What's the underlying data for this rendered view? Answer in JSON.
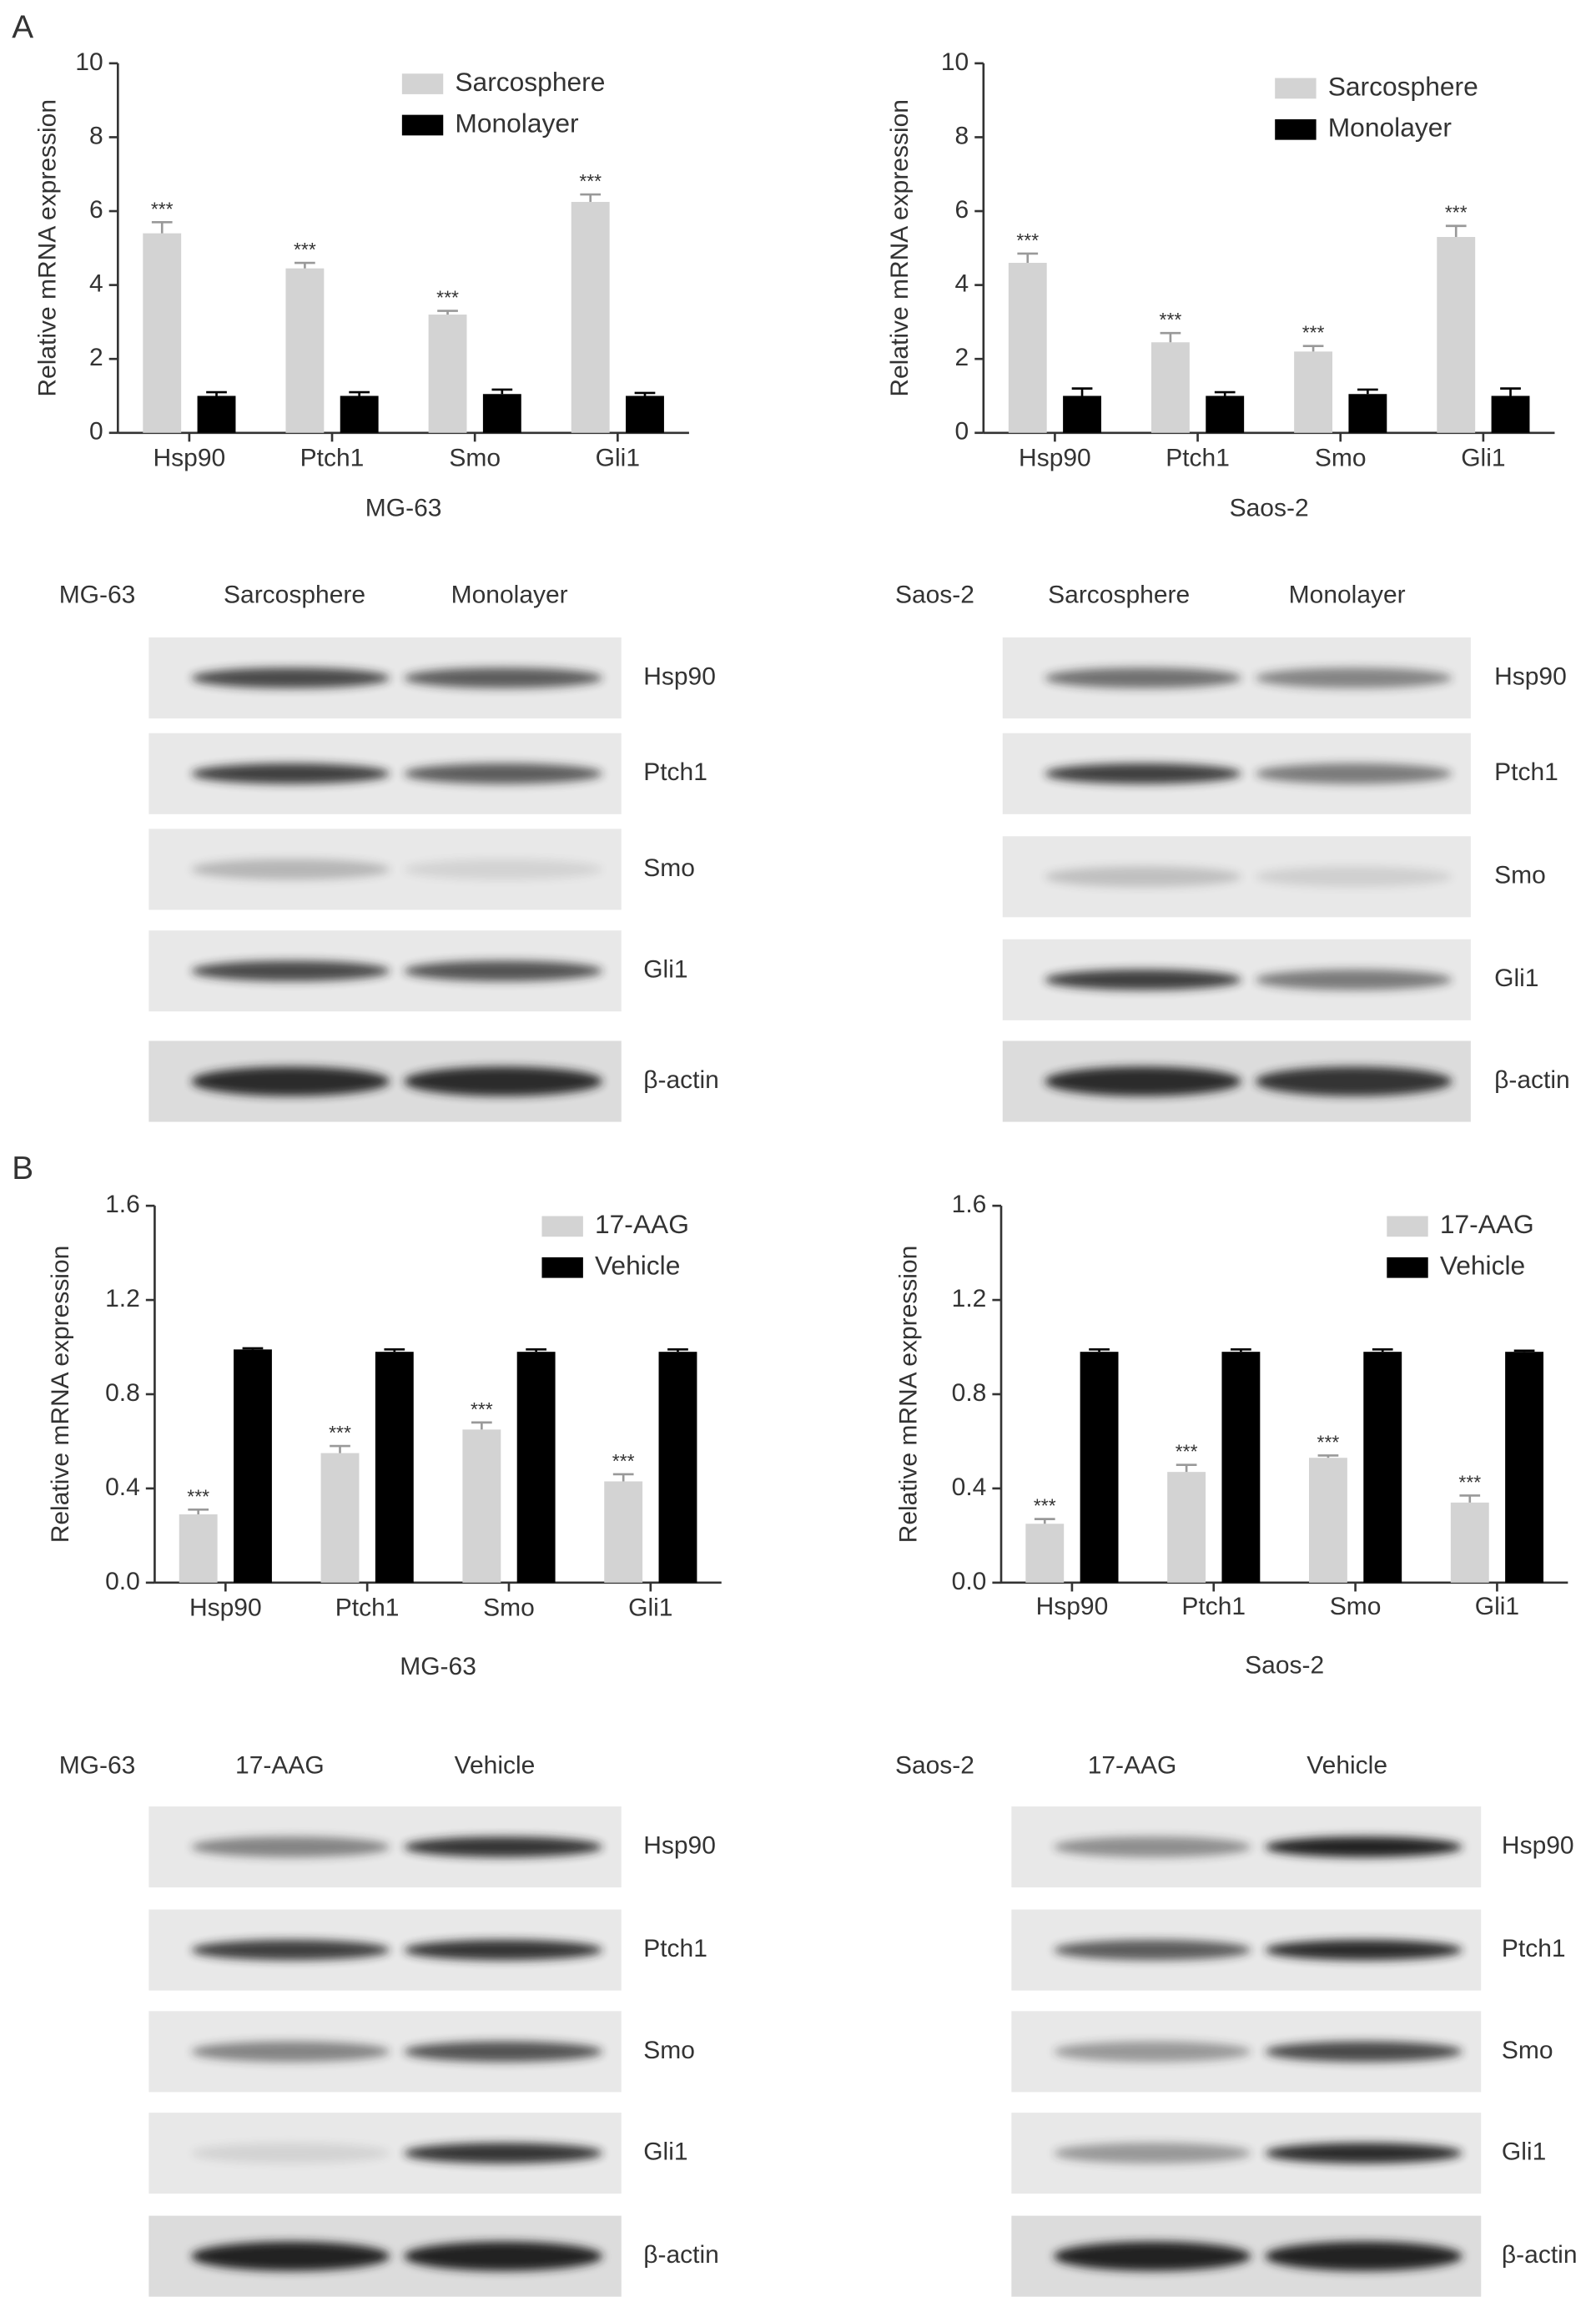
{
  "panel_labels": [
    "A",
    "B"
  ],
  "chart_data": [
    {
      "type": "bar",
      "ylabel": "Relative mRNA expression",
      "xlabel": "MG-63",
      "categories": [
        "Hsp90",
        "Ptch1",
        "Smo",
        "Gli1"
      ],
      "ylim": [
        0,
        10
      ],
      "yticks": [
        0,
        2,
        4,
        6,
        8,
        10
      ],
      "series": [
        {
          "name": "Sarcosphere",
          "color": "#d3d3d3",
          "values": [
            5.4,
            4.45,
            3.2,
            6.25
          ],
          "errors": [
            0.3,
            0.15,
            0.1,
            0.2
          ],
          "annotations": [
            "***",
            "***",
            "***",
            "***"
          ]
        },
        {
          "name": "Monolayer",
          "color": "#000000",
          "values": [
            1.0,
            1.0,
            1.05,
            1.0
          ],
          "errors": [
            0.1,
            0.1,
            0.12,
            0.08
          ]
        }
      ]
    },
    {
      "type": "bar",
      "ylabel": "Relative mRNA expression",
      "xlabel": "Saos-2",
      "categories": [
        "Hsp90",
        "Ptch1",
        "Smo",
        "Gli1"
      ],
      "ylim": [
        0,
        10
      ],
      "yticks": [
        0,
        2,
        4,
        6,
        8,
        10
      ],
      "series": [
        {
          "name": "Sarcosphere",
          "color": "#d3d3d3",
          "values": [
            4.6,
            2.45,
            2.2,
            5.3
          ],
          "errors": [
            0.25,
            0.25,
            0.15,
            0.3
          ],
          "annotations": [
            "***",
            "***",
            "***",
            "***"
          ]
        },
        {
          "name": "Monolayer",
          "color": "#000000",
          "values": [
            1.0,
            1.0,
            1.05,
            1.0
          ],
          "errors": [
            0.2,
            0.1,
            0.12,
            0.2
          ]
        }
      ]
    },
    {
      "type": "bar",
      "ylabel": "Relative mRNA expression",
      "xlabel": "MG-63",
      "categories": [
        "Hsp90",
        "Ptch1",
        "Smo",
        "Gli1"
      ],
      "ylim": [
        0,
        1.6
      ],
      "yticks": [
        {
          "value": 0,
          "label": "0.0"
        },
        0.4,
        0.8,
        1.2,
        1.6
      ],
      "series": [
        {
          "name": "17-AAG",
          "color": "#d3d3d3",
          "values": [
            0.29,
            0.55,
            0.65,
            0.43
          ],
          "errors": [
            0.02,
            0.03,
            0.03,
            0.03
          ],
          "annotations": [
            "***",
            "***",
            "***",
            "***"
          ]
        },
        {
          "name": "Vehicle",
          "color": "#000000",
          "values": [
            0.99,
            0.98,
            0.98,
            0.98
          ],
          "errors": [
            0.005,
            0.01,
            0.01,
            0.01
          ]
        }
      ]
    },
    {
      "type": "bar",
      "ylabel": "Relative mRNA expression",
      "xlabel": "Saos-2",
      "categories": [
        "Hsp90",
        "Ptch1",
        "Smo",
        "Gli1"
      ],
      "ylim": [
        0,
        1.6
      ],
      "yticks": [
        {
          "value": 0,
          "label": "0.0"
        },
        0.4,
        0.8,
        1.2,
        1.6
      ],
      "series": [
        {
          "name": "17-AAG",
          "color": "#d3d3d3",
          "values": [
            0.25,
            0.47,
            0.53,
            0.34
          ],
          "errors": [
            0.02,
            0.03,
            0.01,
            0.03
          ],
          "annotations": [
            "***",
            "***",
            "***",
            "***"
          ]
        },
        {
          "name": "Vehicle",
          "color": "#000000",
          "values": [
            0.98,
            0.98,
            0.98,
            0.98
          ],
          "errors": [
            0.01,
            0.01,
            0.01,
            0.005
          ]
        }
      ]
    }
  ],
  "blots": [
    {
      "cell_line": "MG-63",
      "columns": [
        "Sarcosphere",
        "Monolayer"
      ],
      "rows": [
        "Hsp90",
        "Ptch1",
        "Smo",
        "Gli1",
        "β-actin"
      ]
    },
    {
      "cell_line": "Saos-2",
      "columns": [
        "Sarcosphere",
        "Monolayer"
      ],
      "rows": [
        "Hsp90",
        "Ptch1",
        "Smo",
        "Gli1",
        "β-actin"
      ]
    },
    {
      "cell_line": "MG-63",
      "columns": [
        "17-AAG",
        "Vehicle"
      ],
      "rows": [
        "Hsp90",
        "Ptch1",
        "Smo",
        "Gli1",
        "β-actin"
      ]
    },
    {
      "cell_line": "Saos-2",
      "columns": [
        "17-AAG",
        "Vehicle"
      ],
      "rows": [
        "Hsp90",
        "Ptch1",
        "Smo",
        "Gli1",
        "β-actin"
      ]
    }
  ]
}
